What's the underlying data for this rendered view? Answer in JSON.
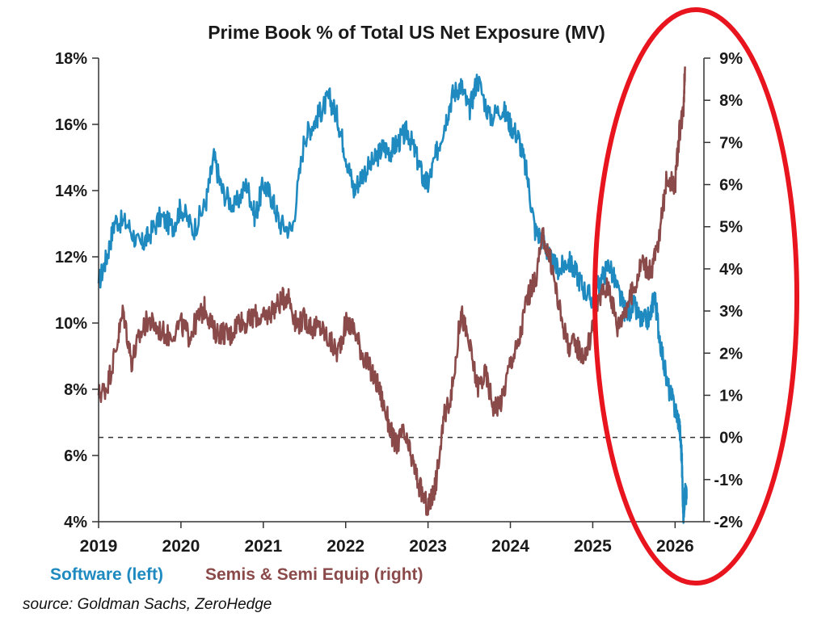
{
  "chart_data": {
    "type": "line",
    "title": "Prime Book % of Total US Net Exposure (MV)",
    "x_ticks": [
      "2019",
      "2020",
      "2021",
      "2022",
      "2023",
      "2024",
      "2025",
      "2026"
    ],
    "xlim": [
      2019,
      2026.35
    ],
    "left_axis": {
      "ticks": [
        "4%",
        "6%",
        "8%",
        "10%",
        "12%",
        "14%",
        "16%",
        "18%"
      ],
      "ylim": [
        4,
        18
      ]
    },
    "right_axis": {
      "ticks": [
        "-2%",
        "-1%",
        "0%",
        "1%",
        "2%",
        "3%",
        "4%",
        "5%",
        "6%",
        "7%",
        "8%",
        "9%"
      ],
      "ylim": [
        -2,
        9
      ]
    },
    "reference_line": {
      "axis": "right",
      "value": 0,
      "style": "dashed"
    },
    "series": [
      {
        "name": "Software (left)",
        "axis": "left",
        "color": "#1f8ac0",
        "x": [
          2019.0,
          2019.1,
          2019.2,
          2019.35,
          2019.5,
          2019.6,
          2019.75,
          2019.9,
          2020.0,
          2020.15,
          2020.3,
          2020.4,
          2020.5,
          2020.65,
          2020.8,
          2020.9,
          2021.0,
          2021.1,
          2021.2,
          2021.35,
          2021.5,
          2021.6,
          2021.7,
          2021.8,
          2021.9,
          2022.0,
          2022.1,
          2022.2,
          2022.35,
          2022.45,
          2022.55,
          2022.65,
          2022.75,
          2022.85,
          2022.95,
          2023.0,
          2023.1,
          2023.2,
          2023.3,
          2023.4,
          2023.5,
          2023.6,
          2023.75,
          2023.9,
          2024.0,
          2024.1,
          2024.2,
          2024.3,
          2024.4,
          2024.5,
          2024.6,
          2024.7,
          2024.8,
          2024.9,
          2025.0,
          2025.1,
          2025.2,
          2025.3,
          2025.4,
          2025.5,
          2025.6,
          2025.7,
          2025.75,
          2025.8,
          2025.9,
          2026.0,
          2026.05,
          2026.08,
          2026.1,
          2026.12,
          2026.14
        ],
        "values": [
          11.2,
          12.0,
          13.1,
          13.0,
          12.3,
          12.6,
          13.2,
          12.9,
          13.5,
          12.8,
          13.6,
          15.0,
          14.0,
          13.5,
          14.2,
          13.2,
          14.2,
          13.8,
          13.0,
          12.8,
          15.6,
          16.0,
          16.4,
          16.8,
          16.2,
          15.1,
          14.0,
          14.5,
          14.9,
          15.3,
          15.2,
          15.5,
          15.8,
          15.1,
          14.3,
          14.2,
          15.1,
          16.0,
          16.9,
          17.2,
          16.4,
          17.4,
          16.2,
          16.5,
          16.0,
          15.6,
          14.5,
          12.8,
          12.5,
          11.8,
          11.6,
          11.9,
          11.5,
          11.0,
          10.7,
          11.3,
          11.8,
          11.0,
          10.3,
          10.5,
          10.0,
          10.2,
          10.9,
          9.8,
          8.2,
          7.4,
          7.0,
          6.0,
          4.2,
          4.9,
          4.7
        ]
      },
      {
        "name": "Semis & Semi Equip (right)",
        "axis": "right",
        "color": "#8b4a4a",
        "x": [
          2019.0,
          2019.1,
          2019.2,
          2019.3,
          2019.4,
          2019.5,
          2019.6,
          2019.7,
          2019.85,
          2020.0,
          2020.1,
          2020.2,
          2020.3,
          2020.4,
          2020.5,
          2020.6,
          2020.7,
          2020.8,
          2020.9,
          2021.0,
          2021.1,
          2021.2,
          2021.3,
          2021.4,
          2021.5,
          2021.6,
          2021.7,
          2021.8,
          2021.9,
          2022.0,
          2022.1,
          2022.2,
          2022.3,
          2022.4,
          2022.5,
          2022.6,
          2022.7,
          2022.8,
          2022.9,
          2023.0,
          2023.05,
          2023.1,
          2023.2,
          2023.3,
          2023.4,
          2023.5,
          2023.6,
          2023.7,
          2023.8,
          2023.9,
          2024.0,
          2024.1,
          2024.2,
          2024.3,
          2024.4,
          2024.5,
          2024.6,
          2024.7,
          2024.8,
          2024.9,
          2025.0,
          2025.1,
          2025.2,
          2025.3,
          2025.4,
          2025.5,
          2025.6,
          2025.7,
          2025.8,
          2025.9,
          2026.0,
          2026.05,
          2026.1,
          2026.12
        ],
        "values": [
          1.0,
          1.2,
          2.0,
          3.0,
          1.8,
          2.4,
          2.8,
          2.6,
          2.4,
          2.7,
          2.4,
          2.8,
          3.1,
          2.5,
          2.5,
          2.4,
          2.8,
          2.7,
          2.9,
          2.8,
          3.0,
          3.2,
          3.4,
          2.7,
          2.8,
          2.6,
          2.6,
          2.3,
          2.0,
          2.7,
          2.6,
          2.0,
          1.6,
          1.2,
          0.5,
          -0.2,
          0.1,
          -0.5,
          -1.2,
          -1.7,
          -1.4,
          -1.0,
          0.5,
          1.2,
          3.0,
          2.2,
          1.2,
          1.5,
          0.7,
          0.9,
          1.8,
          2.2,
          3.3,
          3.7,
          4.8,
          4.1,
          3.0,
          2.2,
          2.2,
          1.9,
          2.6,
          3.4,
          3.6,
          2.6,
          3.1,
          3.5,
          4.2,
          3.9,
          4.6,
          6.2,
          6.0,
          7.2,
          7.8,
          8.8
        ]
      }
    ],
    "legend": [
      {
        "label": "Software (left)",
        "color": "#1f8ac0"
      },
      {
        "label": "Semis & Semi Equip (right)",
        "color": "#8b4a4a"
      }
    ],
    "annotation": {
      "shape": "ellipse",
      "color": "#e8141e",
      "note": "highlights 2025-2026 divergence"
    }
  },
  "source_text": "source: Goldman Sachs, ZeroHedge"
}
